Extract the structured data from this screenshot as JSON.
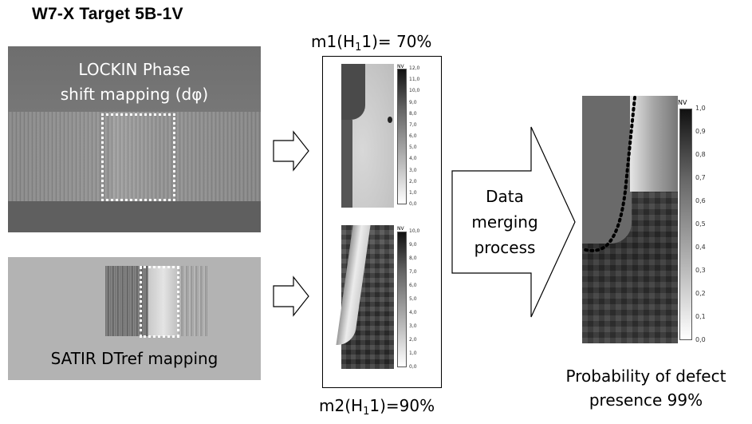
{
  "title": "W7-X Target 5B-1V",
  "lockin": {
    "caption_line1": "LOCKIN Phase",
    "caption_line2": "shift mapping (dφ)"
  },
  "satir": {
    "caption": "SATIR DTref mapping"
  },
  "m1": {
    "prefix": "m1(H",
    "sub": "1",
    "suffix": "1)= 70%"
  },
  "m2": {
    "prefix": "m2(H",
    "sub": "1",
    "suffix": "1)=90%"
  },
  "map1_colorbar": {
    "unit": "NV",
    "ticks": [
      "12,0",
      "11,0",
      "10,0",
      "9,0",
      "8,0",
      "7,0",
      "6,0",
      "5,0",
      "4,0",
      "3,0",
      "2,0",
      "1,0",
      "0,0"
    ]
  },
  "map2_colorbar": {
    "unit": "NV",
    "ticks": [
      "10,0",
      "9,0",
      "8,0",
      "7,0",
      "6,0",
      "5,0",
      "4,0",
      "3,0",
      "2,0",
      "1,0",
      "0,0"
    ]
  },
  "merge": {
    "line1": "Data",
    "line2": "merging",
    "line3": "process"
  },
  "result_colorbar": {
    "unit": "NV",
    "ticks": [
      "1,0",
      "0,9",
      "0,8",
      "0,7",
      "0,6",
      "0,5",
      "0,4",
      "0,3",
      "0,2",
      "0,1",
      "0,0"
    ]
  },
  "result": {
    "caption_line1": "Probability of defect",
    "caption_line2": "presence 99%"
  },
  "colors": {
    "panel_dark": "#7a7a7a",
    "panel_light": "#b3b3b3",
    "dotted_box": "#ffffff",
    "defect_boundary": "#000000"
  }
}
